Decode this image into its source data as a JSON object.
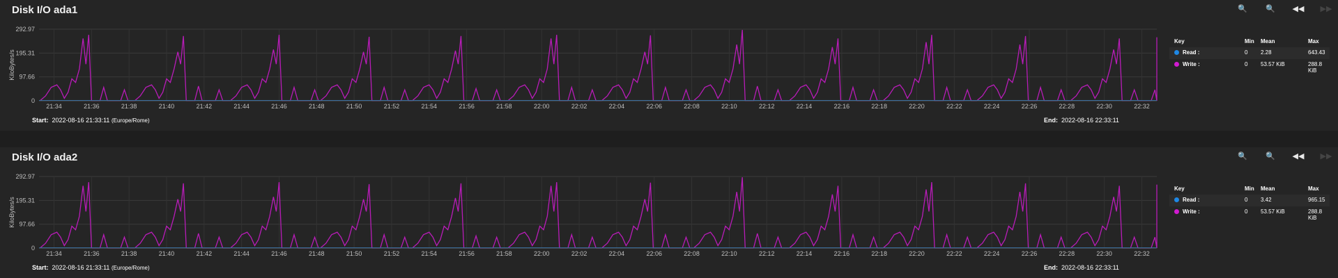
{
  "panels": [
    {
      "title": "Disk I/O ada1",
      "start_label": "Start:",
      "start_value": "2022-08-16 21:33:11",
      "timezone": "(Europe/Rome)",
      "end_label": "End:",
      "end_value": "2022-08-16 22:33:11",
      "legend": {
        "headers": {
          "key": "Key",
          "min": "Min",
          "mean": "Mean",
          "max": "Max"
        },
        "rows": [
          {
            "name": "Read :",
            "color": "#1e88e5",
            "min": "0",
            "mean": "2.28",
            "max": "643.43"
          },
          {
            "name": "Write :",
            "color": "#d11ad1",
            "min": "0",
            "mean": "53.57 KiB",
            "max": "288.8 KiB"
          }
        ]
      }
    },
    {
      "title": "Disk I/O ada2",
      "start_label": "Start:",
      "start_value": "2022-08-16 21:33:11",
      "timezone": "(Europe/Rome)",
      "end_label": "End:",
      "end_value": "2022-08-16 22:33:11",
      "legend": {
        "headers": {
          "key": "Key",
          "min": "Min",
          "mean": "Mean",
          "max": "Max"
        },
        "rows": [
          {
            "name": "Read :",
            "color": "#1e88e5",
            "min": "0",
            "mean": "3.42",
            "max": "965.15"
          },
          {
            "name": "Write :",
            "color": "#d11ad1",
            "min": "0",
            "mean": "53.57 KiB",
            "max": "288.8 KiB"
          }
        ]
      }
    }
  ],
  "toolbar_icons": [
    "zoom-out-icon",
    "zoom-in-icon",
    "rewind-icon",
    "fast-forward-icon"
  ],
  "chart_data": [
    {
      "type": "line",
      "ylabel": "KiloBytes/s",
      "ylim": [
        0,
        292.97
      ],
      "yticks": [
        "0",
        "97.66",
        "195.31",
        "292.97"
      ],
      "xticks": [
        "21:34",
        "21:36",
        "21:38",
        "21:40",
        "21:42",
        "21:44",
        "21:46",
        "21:48",
        "21:50",
        "21:52",
        "21:54",
        "21:56",
        "21:58",
        "22:00",
        "22:02",
        "22:04",
        "22:06",
        "22:08",
        "22:10",
        "22:12",
        "22:14",
        "22:16",
        "22:18",
        "22:20",
        "22:22",
        "22:24",
        "22:26",
        "22:28",
        "22:30",
        "22:32"
      ],
      "x_range_minutes": [
        21.2,
        32.8
      ],
      "grid": true,
      "series": [
        {
          "name": "Read",
          "color": "#1e88e5",
          "values": "near-zero"
        },
        {
          "name": "Write",
          "color": "#c21ac2",
          "cycles": [
            {
              "start": 21.25,
              "peak1": 255,
              "peak2": 270,
              "tail": [
                55,
                0
              ]
            },
            {
              "start": 26.3,
              "peak1": 200,
              "peak2": 265,
              "tail": [
                60,
                0
              ]
            },
            {
              "start": 31.4,
              "peak1": 210,
              "peak2": 270,
              "tail": [
                55,
                0
              ]
            },
            {
              "start": 36.2,
              "peak1": 200,
              "peak2": 262,
              "tail": [
                55,
                0
              ]
            },
            {
              "start": 41.1,
              "peak1": 205,
              "peak2": 265,
              "tail": [
                50,
                0
              ]
            },
            {
              "start": 46.2,
              "peak1": 255,
              "peak2": 270,
              "tail": [
                55,
                0
              ]
            },
            {
              "start": 51.2,
              "peak1": 200,
              "peak2": 268,
              "tail": [
                55,
                0
              ]
            },
            {
              "start": 56.1,
              "peak1": 230,
              "peak2": 290,
              "tail": [
                60,
                0
              ]
            },
            {
              "start": 61.2,
              "peak1": 220,
              "peak2": 255,
              "tail": [
                55,
                0
              ]
            },
            {
              "start": 66.2,
              "peak1": 240,
              "peak2": 270,
              "tail": [
                55,
                0
              ]
            },
            {
              "start": 71.2,
              "peak1": 230,
              "peak2": 265,
              "tail": [
                55,
                0
              ]
            },
            {
              "start": 76.2,
              "peak1": 210,
              "peak2": 255,
              "tail": [
                45,
                0
              ]
            },
            {
              "start": 81.2,
              "peak1": 200,
              "peak2": 260,
              "tail": [
                45,
                0
              ]
            }
          ]
        }
      ]
    },
    {
      "type": "line",
      "ylabel": "KiloBytes/s",
      "ylim": [
        0,
        292.97
      ],
      "yticks": [
        "0",
        "97.66",
        "195.31",
        "292.97"
      ],
      "xticks": [
        "21:34",
        "21:36",
        "21:38",
        "21:40",
        "21:42",
        "21:44",
        "21:46",
        "21:48",
        "21:50",
        "21:52",
        "21:54",
        "21:56",
        "21:58",
        "22:00",
        "22:02",
        "22:04",
        "22:06",
        "22:08",
        "22:10",
        "22:12",
        "22:14",
        "22:16",
        "22:18",
        "22:20",
        "22:22",
        "22:24",
        "22:26",
        "22:28",
        "22:30",
        "22:32"
      ],
      "x_range_minutes": [
        21.2,
        32.8
      ],
      "grid": true,
      "series": [
        {
          "name": "Read",
          "color": "#1e88e5",
          "values": "near-zero"
        },
        {
          "name": "Write",
          "color": "#c21ac2",
          "same_as": "ada1"
        }
      ]
    }
  ]
}
